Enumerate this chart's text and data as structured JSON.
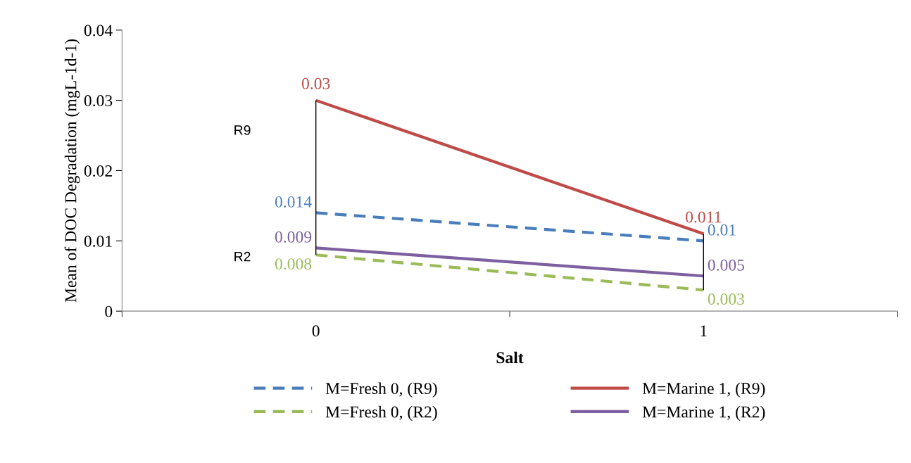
{
  "chart_data": {
    "type": "line",
    "categories": [
      "0",
      "1"
    ],
    "xlabel": "Salt",
    "ylabel": "Mean of DOC Degradation (mgL-1d-1)",
    "ylim": [
      0,
      0.04
    ],
    "yticks": [
      0,
      0.01,
      0.02,
      0.03,
      0.04
    ],
    "grid": false,
    "legend": "bottom",
    "data_labels": true,
    "marker": "none",
    "series": [
      {
        "name": "M=Fresh 0, (R9)",
        "color": "#4a7ebb",
        "line_style": "dashed",
        "values": [
          0.014,
          0.01
        ]
      },
      {
        "name": "M=Marine 1, (R9)",
        "color": "#be4b48",
        "line_style": "solid",
        "values": [
          0.03,
          0.011
        ]
      },
      {
        "name": "M=Fresh 0, (R2)",
        "color": "#9bbb59",
        "line_style": "dashed",
        "values": [
          0.008,
          0.003
        ]
      },
      {
        "name": "M=Marine 1, (R2)",
        "color": "#7d60a0",
        "line_style": "solid",
        "values": [
          0.009,
          0.005
        ]
      },
      {
        "type": "line",
        "color": "#000000",
        "line_style": "solid",
        "x": [
          "0",
          "0"
        ],
        "values": [
          0.008,
          0.03
        ],
        "value_labels": [
          null,
          null
        ]
      },
      {
        "type": "line",
        "color": "#000000",
        "line_style": "solid",
        "x": [
          "1",
          "1"
        ],
        "values": [
          0.003,
          0.011
        ],
        "value_labels": [
          null,
          null
        ]
      }
    ],
    "annotations": [
      "R9",
      "R2"
    ]
  }
}
